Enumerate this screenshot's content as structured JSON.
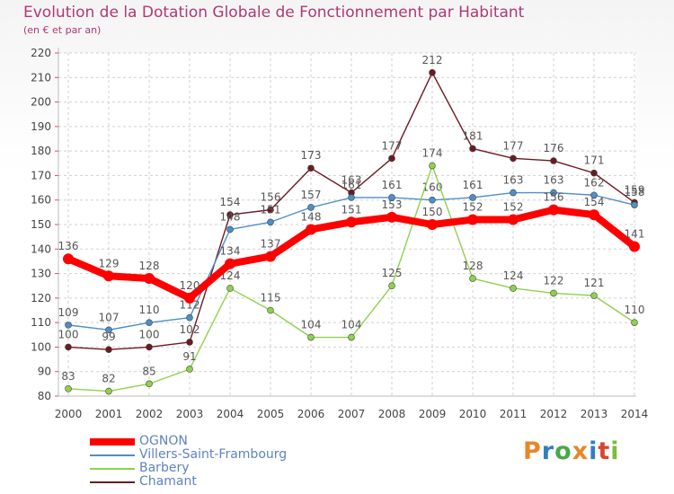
{
  "header": {
    "title": "Evolution de la Dotation Globale de Fonctionnement par Habitant",
    "subtitle": "(en € et par an)"
  },
  "logo": {
    "text": "Proxiti",
    "colors": [
      "#e8862a",
      "#2f7fc1",
      "#4aa84a",
      "#e8862a",
      "#2f7fc1",
      "#d9452b",
      "#7dbb3b"
    ]
  },
  "chart_data": {
    "type": "line",
    "x": [
      2000,
      2001,
      2002,
      2003,
      2004,
      2005,
      2006,
      2007,
      2008,
      2009,
      2010,
      2011,
      2012,
      2013,
      2014
    ],
    "ylim": [
      80,
      220
    ],
    "yticks": [
      80,
      90,
      100,
      110,
      120,
      130,
      140,
      150,
      160,
      170,
      180,
      190,
      200,
      210,
      220
    ],
    "grid": true,
    "legend_position": "bottom-left",
    "series": [
      {
        "name": "Chamant",
        "color": "#6b1a22",
        "values": [
          100,
          99,
          100,
          102,
          154,
          156,
          173,
          163,
          177,
          212,
          181,
          177,
          176,
          171,
          159
        ]
      },
      {
        "name": "Villers-Saint-Frambourg",
        "color": "#4d8fc6",
        "values": [
          109,
          107,
          110,
          112,
          148,
          151,
          157,
          161,
          161,
          160,
          161,
          163,
          163,
          162,
          158
        ]
      },
      {
        "name": "Barbery",
        "color": "#8fd14f",
        "values": [
          83,
          82,
          85,
          91,
          124,
          115,
          104,
          104,
          125,
          174,
          128,
          124,
          122,
          121,
          110
        ]
      },
      {
        "name": "OGNON",
        "color": "#ff0000",
        "values": [
          136,
          129,
          128,
          120,
          134,
          137,
          148,
          151,
          153,
          150,
          152,
          152,
          156,
          154,
          141
        ]
      }
    ],
    "legend_order": [
      "OGNON",
      "Villers-Saint-Frambourg",
      "Barbery",
      "Chamant"
    ]
  }
}
